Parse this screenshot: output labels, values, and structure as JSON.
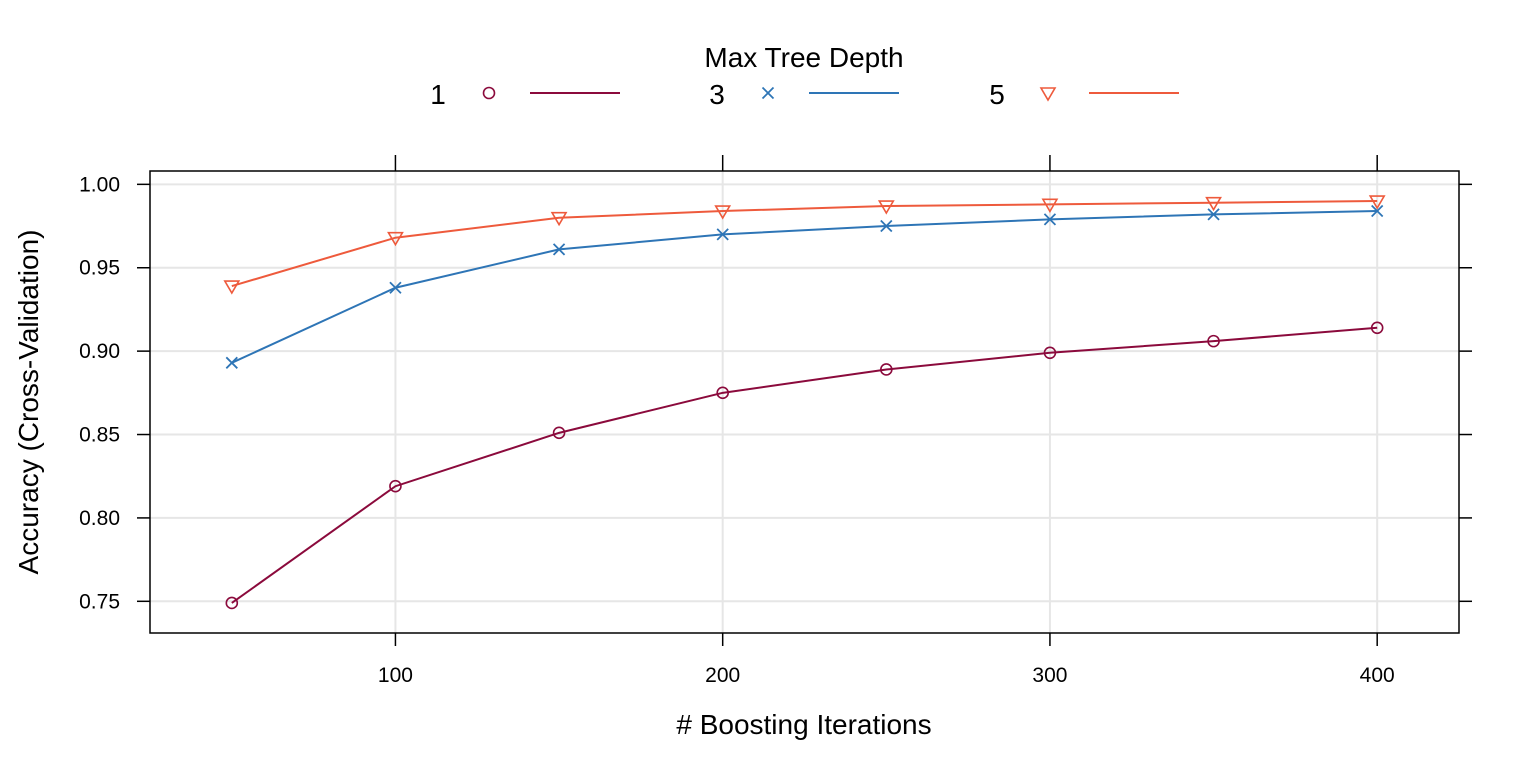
{
  "chart_data": {
    "type": "line",
    "title": "",
    "xlabel": "# Boosting Iterations",
    "ylabel": "Accuracy (Cross-Validation)",
    "legend": {
      "title": "Max Tree Depth",
      "placement": "top"
    },
    "xlim": [
      25,
      425
    ],
    "ylim": [
      0.731,
      1.008
    ],
    "xticks": [
      100,
      200,
      300,
      400
    ],
    "xtick_labels": [
      "100",
      "200",
      "300",
      "400"
    ],
    "yticks": [
      0.75,
      0.8,
      0.85,
      0.9,
      0.95,
      1.0
    ],
    "ytick_labels": [
      "0.75",
      "0.80",
      "0.85",
      "0.90",
      "0.95",
      "1.00"
    ],
    "grid": true,
    "x": [
      50,
      100,
      150,
      200,
      250,
      300,
      350,
      400
    ],
    "series": [
      {
        "name": "1",
        "color": "#8B0A3C",
        "marker": "circle",
        "values": [
          0.749,
          0.819,
          0.851,
          0.875,
          0.889,
          0.899,
          0.906,
          0.914
        ]
      },
      {
        "name": "3",
        "color": "#2E75B6",
        "marker": "cross",
        "values": [
          0.893,
          0.938,
          0.961,
          0.97,
          0.975,
          0.979,
          0.982,
          0.984
        ]
      },
      {
        "name": "5",
        "color": "#EE5A3C",
        "marker": "triangle-down",
        "values": [
          0.939,
          0.968,
          0.98,
          0.984,
          0.987,
          0.988,
          0.989,
          0.99
        ]
      }
    ]
  }
}
